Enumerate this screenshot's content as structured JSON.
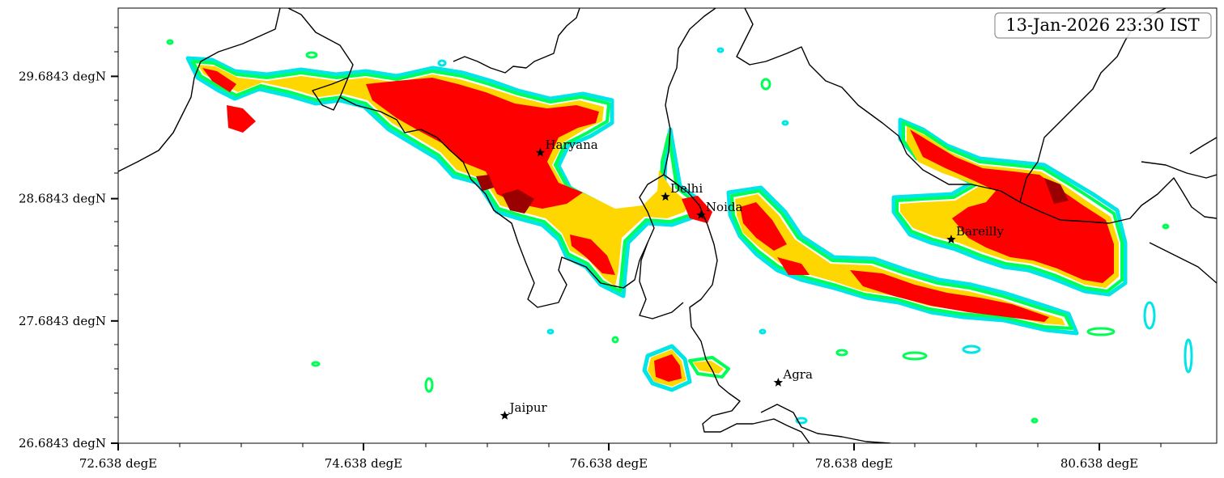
{
  "timestamp": "13-Jan-2026 23:30 IST",
  "map": {
    "x_ticks": [
      {
        "value": 72.638,
        "label": "72.638 degE"
      },
      {
        "value": 74.638,
        "label": "74.638 degE"
      },
      {
        "value": 76.638,
        "label": "76.638 degE"
      },
      {
        "value": 78.638,
        "label": "78.638 degE"
      },
      {
        "value": 80.638,
        "label": "80.638 degE"
      }
    ],
    "y_ticks": [
      {
        "value": 29.6843,
        "label": "29.6843 degN"
      },
      {
        "value": 28.6843,
        "label": "28.6843 degN"
      },
      {
        "value": 27.6843,
        "label": "27.6843 degN"
      },
      {
        "value": 26.6843,
        "label": "26.6843 degN"
      }
    ],
    "lon_range": [
      72.638,
      81.6
    ],
    "lat_range": [
      26.6843,
      30.24
    ],
    "cities": [
      {
        "name": "Haryana",
        "lon": 76.08,
        "lat": 29.06
      },
      {
        "name": "Delhi",
        "lon": 77.1,
        "lat": 28.7
      },
      {
        "name": "Noida",
        "lon": 77.39,
        "lat": 28.55
      },
      {
        "name": "Bareilly",
        "lon": 79.43,
        "lat": 28.35
      },
      {
        "name": "Agra",
        "lon": 78.02,
        "lat": 27.18
      },
      {
        "name": "Jaipur",
        "lon": 75.79,
        "lat": 26.91
      }
    ],
    "colors": {
      "level1": "#00e5e5",
      "level2": "#00ff55",
      "level3": "#ffd700",
      "level4": "#ff0000",
      "level5": "#9b0000",
      "border": "#000000"
    }
  }
}
